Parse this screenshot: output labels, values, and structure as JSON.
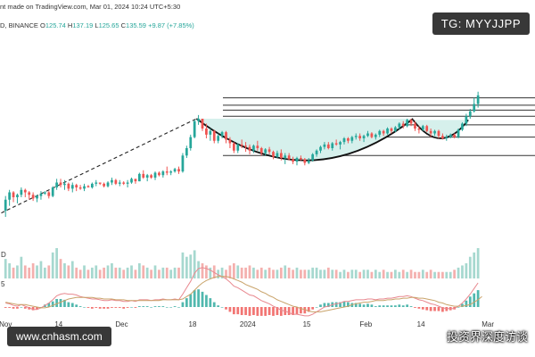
{
  "header": {
    "source_line": "nt made on TradingView.com, Mar 01, 2024 10:24 UTC+5:30",
    "symbol_line": "D, BINANCE",
    "open_label": "O",
    "open": "125.74",
    "high_label": "H",
    "high": "137.19",
    "low_label": "L",
    "low": "125.65",
    "close_label": "C",
    "close": "135.59",
    "change": "+9.87 (+7.85%)"
  },
  "badges": {
    "telegram": "TG: MYYJJPP",
    "website": "www.cnhasm.com",
    "watermark": "投资界深度访谈"
  },
  "panes": {
    "volume_label": "D",
    "macd_label": "5"
  },
  "colors": {
    "up": "#26a69a",
    "down": "#ef5350",
    "volume_up": "#a6d8cf",
    "volume_down": "#f4b0ae",
    "cup_fill": "#d6f0ec",
    "cup_curve": "#111111",
    "resistance_lines": "#333333",
    "trend_line": "#222222",
    "macd_line": "#e8888f",
    "signal_line": "#c9a36a"
  },
  "chart_data": {
    "type": "candlestick",
    "pattern": "cup and handle",
    "x_ticks": [
      "Nov",
      "14",
      "Dec",
      "18",
      "2024",
      "15",
      "Feb",
      "14",
      "Mar"
    ],
    "x_tick_positions": [
      0.5,
      14,
      30,
      48,
      62,
      77,
      92,
      106,
      123
    ],
    "x_range": [
      0,
      125
    ],
    "price_range": [
      20,
      140
    ],
    "candles": [
      [
        41,
        53,
        36,
        50
      ],
      [
        50,
        58,
        45,
        56
      ],
      [
        56,
        57,
        48,
        52
      ],
      [
        52,
        55,
        47,
        54
      ],
      [
        54,
        60,
        52,
        58
      ],
      [
        58,
        59,
        52,
        56
      ],
      [
        56,
        57,
        50,
        54
      ],
      [
        54,
        56,
        49,
        51
      ],
      [
        51,
        54,
        48,
        53
      ],
      [
        53,
        57,
        50,
        55
      ],
      [
        55,
        57,
        54,
        56
      ],
      [
        56,
        57,
        51,
        53
      ],
      [
        53,
        61,
        52,
        60
      ],
      [
        60,
        67,
        58,
        64
      ],
      [
        64,
        67,
        60,
        62
      ],
      [
        62,
        66,
        58,
        63
      ],
      [
        63,
        64,
        57,
        59
      ],
      [
        59,
        64,
        56,
        62
      ],
      [
        62,
        63,
        57,
        60
      ],
      [
        60,
        62,
        58,
        59
      ],
      [
        59,
        63,
        57,
        61
      ],
      [
        61,
        62,
        60,
        60
      ],
      [
        60,
        64,
        59,
        63
      ],
      [
        63,
        66,
        61,
        64
      ],
      [
        64,
        64,
        62,
        63
      ],
      [
        63,
        64,
        60,
        61
      ],
      [
        61,
        65,
        60,
        64
      ],
      [
        64,
        68,
        62,
        66
      ],
      [
        66,
        67,
        62,
        63
      ],
      [
        63,
        66,
        61,
        64
      ],
      [
        64,
        65,
        62,
        63
      ],
      [
        63,
        66,
        60,
        64
      ],
      [
        64,
        68,
        63,
        67
      ],
      [
        67,
        67,
        63,
        65
      ],
      [
        65,
        72,
        65,
        71
      ],
      [
        71,
        74,
        67,
        68
      ],
      [
        68,
        71,
        65,
        70
      ],
      [
        70,
        71,
        67,
        68
      ],
      [
        68,
        73,
        66,
        72
      ],
      [
        72,
        73,
        69,
        70
      ],
      [
        70,
        74,
        68,
        73
      ],
      [
        73,
        77,
        70,
        72
      ],
      [
        72,
        74,
        70,
        73
      ],
      [
        73,
        76,
        72,
        75
      ],
      [
        75,
        77,
        71,
        73
      ],
      [
        73,
        88,
        72,
        86
      ],
      [
        86,
        94,
        84,
        92
      ],
      [
        92,
        103,
        90,
        101
      ],
      [
        101,
        115,
        100,
        114
      ],
      [
        114,
        119,
        111,
        116
      ],
      [
        116,
        116,
        106,
        108
      ],
      [
        108,
        112,
        100,
        103
      ],
      [
        103,
        108,
        98,
        106
      ],
      [
        106,
        107,
        96,
        98
      ],
      [
        98,
        104,
        96,
        102
      ],
      [
        102,
        106,
        100,
        105
      ],
      [
        105,
        106,
        96,
        99
      ],
      [
        99,
        101,
        92,
        96
      ],
      [
        96,
        97,
        88,
        90
      ],
      [
        90,
        96,
        88,
        95
      ],
      [
        95,
        99,
        92,
        94
      ],
      [
        94,
        97,
        89,
        93
      ],
      [
        93,
        95,
        87,
        90
      ],
      [
        90,
        95,
        88,
        94
      ],
      [
        94,
        98,
        90,
        92
      ],
      [
        92,
        93,
        86,
        88
      ],
      [
        88,
        92,
        86,
        91
      ],
      [
        91,
        93,
        87,
        89
      ],
      [
        89,
        90,
        83,
        85
      ],
      [
        85,
        90,
        84,
        88
      ],
      [
        88,
        91,
        82,
        84
      ],
      [
        84,
        88,
        79,
        86
      ],
      [
        86,
        88,
        82,
        83
      ],
      [
        83,
        85,
        79,
        81
      ],
      [
        81,
        85,
        78,
        84
      ],
      [
        84,
        86,
        82,
        83
      ],
      [
        83,
        84,
        78,
        80
      ],
      [
        80,
        84,
        79,
        82
      ],
      [
        82,
        88,
        81,
        87
      ],
      [
        87,
        91,
        85,
        90
      ],
      [
        90,
        94,
        88,
        93
      ],
      [
        93,
        97,
        91,
        95
      ],
      [
        95,
        97,
        91,
        92
      ],
      [
        92,
        97,
        90,
        96
      ],
      [
        96,
        99,
        94,
        95
      ],
      [
        95,
        98,
        91,
        97
      ],
      [
        97,
        101,
        95,
        100
      ],
      [
        100,
        101,
        96,
        98
      ],
      [
        98,
        102,
        96,
        101
      ],
      [
        101,
        104,
        99,
        102
      ],
      [
        102,
        104,
        98,
        100
      ],
      [
        100,
        103,
        97,
        102
      ],
      [
        102,
        106,
        101,
        104
      ],
      [
        104,
        105,
        100,
        101
      ],
      [
        101,
        104,
        99,
        103
      ],
      [
        103,
        107,
        101,
        106
      ],
      [
        106,
        107,
        102,
        104
      ],
      [
        104,
        109,
        103,
        108
      ],
      [
        108,
        109,
        104,
        106
      ],
      [
        106,
        110,
        105,
        109
      ],
      [
        109,
        113,
        107,
        112
      ],
      [
        112,
        114,
        108,
        110
      ],
      [
        110,
        116,
        109,
        115
      ],
      [
        115,
        116,
        110,
        112
      ],
      [
        112,
        114,
        106,
        108
      ],
      [
        108,
        110,
        104,
        107
      ],
      [
        107,
        111,
        106,
        110
      ],
      [
        110,
        111,
        105,
        106
      ],
      [
        106,
        108,
        101,
        104
      ],
      [
        104,
        107,
        102,
        106
      ],
      [
        106,
        107,
        100,
        102
      ],
      [
        102,
        104,
        99,
        100
      ],
      [
        100,
        103,
        98,
        101
      ],
      [
        101,
        104,
        100,
        103
      ],
      [
        103,
        104,
        100,
        101
      ],
      [
        101,
        108,
        100,
        107
      ],
      [
        107,
        113,
        106,
        112
      ],
      [
        112,
        120,
        110,
        118
      ],
      [
        118,
        124,
        116,
        122
      ],
      [
        122,
        133,
        121,
        128
      ],
      [
        128,
        138,
        125,
        135
      ]
    ],
    "volume": [
      9,
      7,
      5,
      6,
      10,
      6,
      5,
      7,
      6,
      8,
      5,
      6,
      12,
      14,
      9,
      7,
      6,
      8,
      5,
      4,
      6,
      4,
      5,
      6,
      4,
      5,
      6,
      7,
      5,
      5,
      4,
      5,
      6,
      4,
      7,
      6,
      5,
      4,
      6,
      4,
      5,
      5,
      4,
      5,
      5,
      12,
      10,
      11,
      13,
      8,
      7,
      6,
      5,
      6,
      4,
      5,
      4,
      6,
      7,
      6,
      5,
      5,
      6,
      5,
      4,
      5,
      4,
      5,
      4,
      4,
      5,
      6,
      5,
      4,
      5,
      4,
      4,
      4,
      5,
      5,
      4,
      4,
      5,
      4,
      4,
      3,
      4,
      3,
      4,
      4,
      3,
      4,
      4,
      3,
      4,
      3,
      4,
      3,
      3,
      4,
      3,
      4,
      3,
      4,
      3,
      3,
      4,
      3,
      4,
      3,
      3,
      3,
      3,
      3,
      4,
      5,
      6,
      7,
      10,
      12,
      14
    ],
    "macd": [
      0.5,
      0.4,
      0.2,
      0.1,
      0.3,
      0.1,
      -0.1,
      -0.3,
      -0.3,
      -0.1,
      0.2,
      0.5,
      0.9,
      1.4,
      1.6,
      1.7,
      1.6,
      1.6,
      1.5,
      1.3,
      1.2,
      1.1,
      1.0,
      1.0,
      0.9,
      0.8,
      0.8,
      0.9,
      0.8,
      0.8,
      0.7,
      0.7,
      0.8,
      0.7,
      0.9,
      0.9,
      0.9,
      0.8,
      0.9,
      0.9,
      1.0,
      0.9,
      0.9,
      1.0,
      0.9,
      1.6,
      2.4,
      3.2,
      4.2,
      4.8,
      4.9,
      4.8,
      4.6,
      4.3,
      4.0,
      3.8,
      3.5,
      3.1,
      2.6,
      2.4,
      2.1,
      1.8,
      1.5,
      1.4,
      1.1,
      0.8,
      0.6,
      0.4,
      0.1,
      -0.1,
      -0.4,
      -0.5,
      -0.7,
      -0.9,
      -0.9,
      -1.0,
      -1.1,
      -1.1,
      -0.9,
      -0.6,
      -0.3,
      0.0,
      0.1,
      0.3,
      0.4,
      0.5,
      0.7,
      0.7,
      0.8,
      0.9,
      0.9,
      0.9,
      1.0,
      1.0,
      0.9,
      1.0,
      1.0,
      1.1,
      1.1,
      1.2,
      1.3,
      1.3,
      1.4,
      1.3,
      1.1,
      0.9,
      0.8,
      0.6,
      0.4,
      0.3,
      0.1,
      -0.1,
      -0.2,
      -0.2,
      -0.2,
      0.1,
      0.5,
      1.0,
      1.6,
      2.3,
      3.0
    ],
    "signal": [
      0.6,
      0.5,
      0.4,
      0.3,
      0.3,
      0.3,
      0.2,
      0.1,
      0.0,
      -0.1,
      -0.1,
      0.0,
      0.2,
      0.4,
      0.6,
      0.8,
      1.0,
      1.1,
      1.2,
      1.2,
      1.2,
      1.2,
      1.2,
      1.1,
      1.1,
      1.0,
      1.0,
      1.0,
      0.9,
      0.9,
      0.9,
      0.8,
      0.8,
      0.8,
      0.8,
      0.8,
      0.8,
      0.8,
      0.8,
      0.8,
      0.9,
      0.9,
      0.9,
      0.9,
      0.9,
      1.0,
      1.3,
      1.6,
      2.1,
      2.6,
      3.0,
      3.3,
      3.5,
      3.7,
      3.8,
      3.8,
      3.8,
      3.7,
      3.5,
      3.3,
      3.1,
      2.8,
      2.6,
      2.4,
      2.2,
      1.9,
      1.7,
      1.4,
      1.2,
      0.9,
      0.7,
      0.5,
      0.3,
      0.1,
      0.0,
      -0.2,
      -0.3,
      -0.5,
      -0.6,
      -0.6,
      -0.6,
      -0.5,
      -0.4,
      -0.3,
      -0.2,
      -0.1,
      0.0,
      0.1,
      0.3,
      0.4,
      0.5,
      0.6,
      0.6,
      0.7,
      0.8,
      0.8,
      0.8,
      0.9,
      0.9,
      1.0,
      1.0,
      1.1,
      1.1,
      1.2,
      1.2,
      1.1,
      1.1,
      1.0,
      0.9,
      0.8,
      0.6,
      0.5,
      0.3,
      0.2,
      0.1,
      0.1,
      0.1,
      0.2,
      0.3,
      0.6,
      0.9,
      1.3
    ],
    "resistance_levels": [
      133,
      127,
      123,
      118,
      111,
      101,
      86
    ],
    "trend_line": {
      "from": {
        "x": -2,
        "price": 37
      },
      "to": {
        "x": 49,
        "price": 116
      }
    },
    "cup": {
      "x_start": 49,
      "x_end": 104,
      "bottom": {
        "x": 77,
        "price": 82
      },
      "rim": 116
    },
    "handle": {
      "x_start": 104,
      "x_end": 118,
      "bottom": {
        "x": 111,
        "price": 100
      },
      "rim": 115
    },
    "grid": false,
    "legend": "none"
  }
}
